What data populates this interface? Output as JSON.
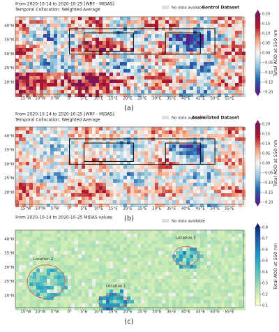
{
  "panels": [
    {
      "title": "From 2020-10-14 to 2020-10-25 [WRF - MIDAS]",
      "subtitle": "Temporal Collocation: Weighted Average",
      "legend": "No data available",
      "dataset": "Control Dataset",
      "colorbar_label": "Total AOD at 550 nm",
      "colorbar_ticks": [
        0.2,
        0.15,
        0.1,
        0.05,
        0.0,
        -0.05,
        -0.1,
        -0.15,
        -0.2
      ],
      "colorbar_tick_labels": [
        "0.20",
        "0.15",
        "0.10",
        "0.05",
        "0.00",
        "−0.05",
        "−0.10",
        "−0.15",
        "−0.20"
      ],
      "panel_label": "(a)"
    },
    {
      "title": "From 2020-10-14 to 2020-10-25 [WRF - MIDAS]",
      "subtitle": "Temporal Collocation: Weighted Average",
      "legend": "No data available",
      "dataset": "Assimilated Dataset",
      "colorbar_label": "Total AOD at 550 nm",
      "colorbar_ticks": [
        0.2,
        0.15,
        0.1,
        0.05,
        0.0,
        -0.05,
        -0.1,
        -0.15,
        -0.2
      ],
      "colorbar_tick_labels": [
        "0.20",
        "0.15",
        "0.10",
        "0.05",
        "0.00",
        "−0.05",
        "−0.10",
        "−0.15",
        "−0.20"
      ],
      "panel_label": "(b)"
    },
    {
      "title": "From 2020-10-14 to 2020-10-25 MIDAS values",
      "legend": "No data available",
      "colorbar_label": "Total AOD at 550 nm",
      "colorbar_ticks": [
        0.8,
        0.7,
        0.6,
        0.5,
        0.4,
        0.3,
        0.2,
        0.1
      ],
      "locations": [
        "Location 1",
        "Location 2",
        "Location 3"
      ],
      "panel_label": "(c)"
    }
  ],
  "lon_ticks": [
    "15°W",
    "10°W",
    "5°W",
    "0°",
    "5°E",
    "10°E",
    "15°E",
    "20°E",
    "25°E",
    "30°E",
    "35°E",
    "40°E",
    "45°E",
    "50°E",
    "55°E"
  ],
  "lat_ticks": [
    "40°N",
    "35°N",
    "30°N",
    "25°N",
    "20°N"
  ]
}
